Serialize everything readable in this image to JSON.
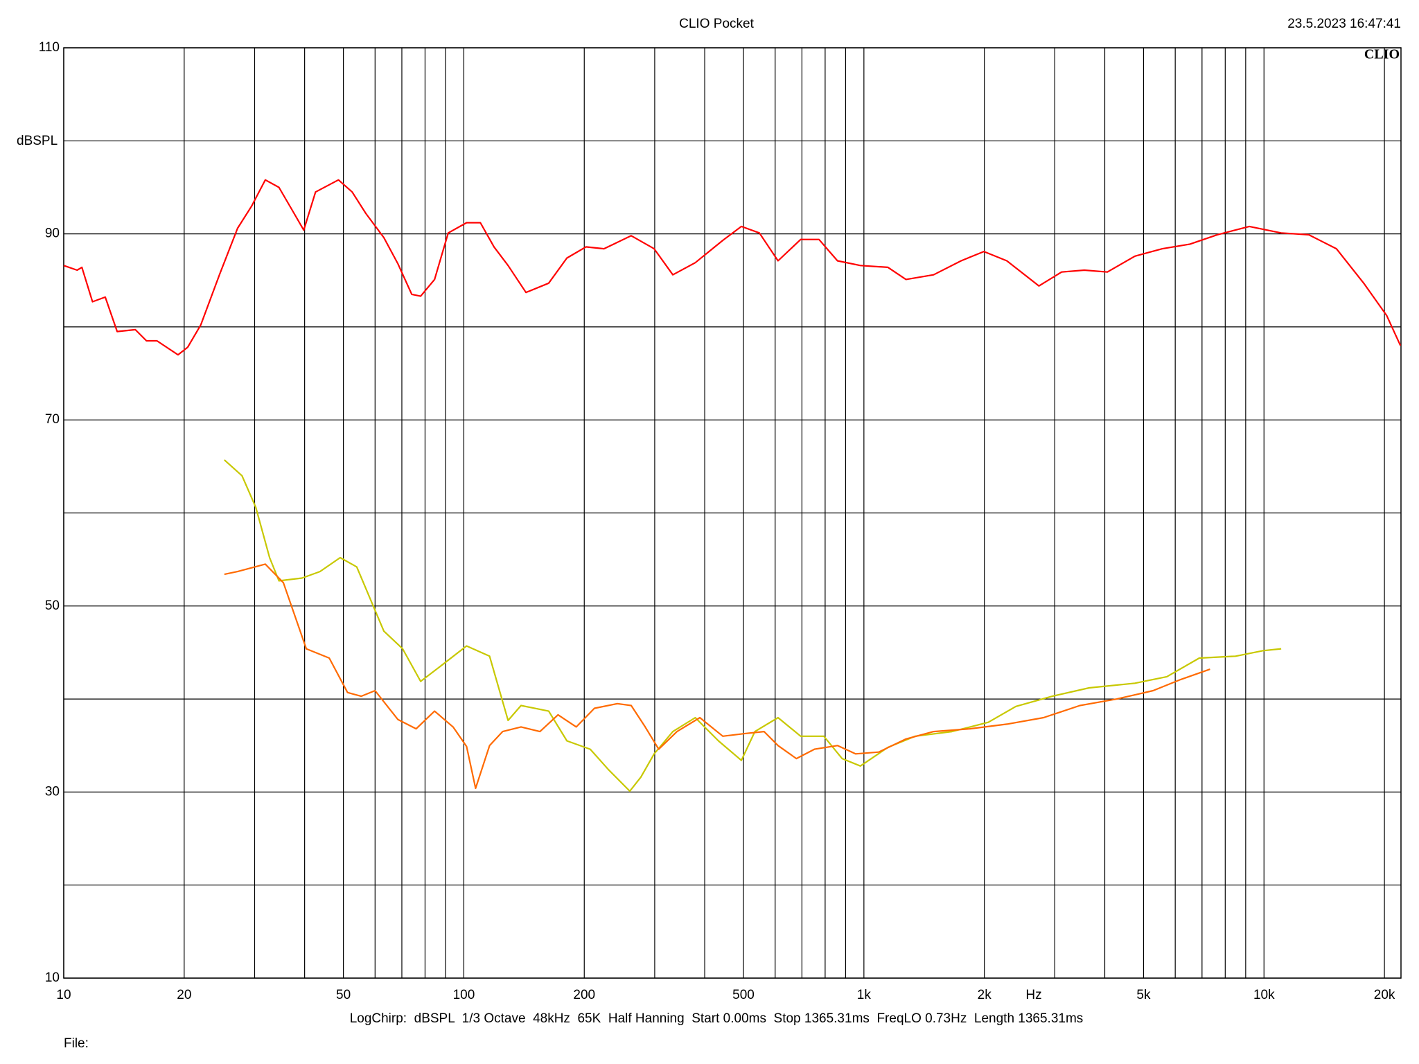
{
  "chart_data": {
    "type": "line",
    "title": "CLIO Pocket",
    "timestamp": "23.5.2023 16:47:41",
    "logo": "CLIO",
    "ylabel": "dBSPL",
    "xlabel": "Hz",
    "footer": "LogChirp:  dBSPL  1/3 Octave  48kHz  65K  Half Hanning  Start 0.00ms  Stop 1365.31ms  FreqLO 0.73Hz  Length 1365.31ms",
    "file": "File:",
    "xscale": "log",
    "xlim": [
      10,
      22000
    ],
    "ylim": [
      10,
      110
    ],
    "xticks": [
      10,
      20,
      50,
      100,
      200,
      500,
      {
        "value": 1000,
        "label": "1k"
      },
      {
        "value": 2000,
        "label": "2k"
      },
      {
        "value": 5000,
        "label": "5k"
      },
      {
        "value": 10000,
        "label": "10k"
      },
      {
        "value": 20000,
        "label": "20k"
      }
    ],
    "xgrid": [
      30,
      40,
      60,
      70,
      80,
      90,
      300,
      400,
      600,
      700,
      800,
      900,
      3000,
      4000,
      6000,
      7000,
      8000,
      9000
    ],
    "yticks": [
      10,
      30,
      50,
      70,
      90,
      110
    ],
    "ygrid": [
      20,
      40,
      60,
      80,
      100
    ],
    "grid": true,
    "series": [
      {
        "color": "#ff0000",
        "x": [
          10,
          10.8,
          11.1,
          11.8,
          12.7,
          13.6,
          15.1,
          16.1,
          17.1,
          19.3,
          20.4,
          22,
          24.5,
          27.2,
          29.5,
          31.9,
          34.5,
          37.3,
          39.8,
          42.6,
          48.6,
          52.6,
          56.9,
          63.1,
          68.4,
          74.1,
          78,
          84.5,
          91.4,
          101.6,
          110,
          119,
          129,
          143,
          163,
          181,
          202,
          224,
          262,
          299,
          333,
          379,
          444,
          494,
          548,
          610,
          695,
          772,
          859,
          980,
          1148,
          1274,
          1493,
          1750,
          1995,
          2276,
          2738,
          3120,
          3556,
          4060,
          4757,
          5572,
          6530,
          7640,
          9190,
          11040,
          12940,
          15170,
          17750,
          20270,
          21930
        ],
        "values": [
          86.6,
          86.1,
          86.4,
          82.7,
          83.2,
          79.5,
          79.7,
          78.5,
          78.5,
          77.0,
          77.8,
          80.2,
          85.6,
          90.6,
          93.0,
          95.8,
          95.0,
          92.5,
          90.4,
          94.5,
          95.8,
          94.5,
          92.2,
          89.6,
          86.8,
          83.5,
          83.3,
          85.1,
          90.1,
          91.2,
          91.2,
          88.6,
          86.6,
          83.7,
          84.7,
          87.4,
          88.6,
          88.4,
          89.8,
          88.4,
          85.6,
          86.9,
          89.3,
          90.8,
          90.1,
          87.1,
          89.4,
          89.4,
          87.1,
          86.6,
          86.4,
          85.1,
          85.6,
          87.1,
          88.1,
          87.1,
          84.4,
          85.9,
          86.1,
          85.9,
          87.6,
          88.4,
          88.9,
          89.9,
          90.8,
          90.1,
          89.9,
          88.4,
          84.7,
          81.2,
          78.0
        ]
      },
      {
        "color": "#c8c800",
        "x": [
          25.2,
          27.9,
          30.2,
          32.7,
          34.5,
          39.4,
          43.7,
          49.1,
          54,
          63.1,
          70.3,
          78,
          86.7,
          101.6,
          116,
          129,
          139,
          163,
          181,
          207,
          230,
          260,
          277,
          299,
          333,
          379,
          433,
          494,
          534,
          610,
          695,
          794,
          882,
          980,
          1148,
          1343,
          1660,
          2046,
          2398,
          2958,
          3656,
          4757,
          5715,
          6890,
          8490,
          9950,
          11040
        ],
        "values": [
          65.7,
          64.0,
          60.6,
          55.2,
          52.7,
          53.0,
          53.7,
          55.2,
          54.2,
          47.3,
          45.4,
          41.9,
          43.4,
          45.7,
          44.6,
          37.7,
          39.3,
          38.7,
          35.5,
          34.6,
          32.4,
          30.1,
          31.6,
          34.1,
          36.5,
          38.0,
          35.5,
          33.4,
          36.5,
          38.0,
          36.0,
          36.0,
          33.6,
          32.8,
          34.8,
          36.0,
          36.5,
          37.5,
          39.2,
          40.3,
          41.2,
          41.7,
          42.4,
          44.4,
          44.6,
          45.2,
          45.4
        ]
      },
      {
        "color": "#ff6a00",
        "x": [
          25.2,
          27.2,
          31.9,
          35.4,
          40.4,
          46.1,
          51.2,
          55.4,
          60,
          68.4,
          76,
          84.5,
          94,
          101.6,
          107,
          116,
          125,
          139,
          155,
          172,
          191,
          212,
          242,
          262,
          284,
          307,
          341,
          389,
          444,
          507,
          563,
          610,
          678,
          752,
          859,
          953,
          1089,
          1274,
          1493,
          1841,
          2276,
          2812,
          3467,
          4285,
          5284,
          6194,
          7330
        ],
        "values": [
          53.4,
          53.7,
          54.5,
          52.5,
          45.4,
          44.4,
          40.7,
          40.3,
          40.9,
          37.8,
          36.8,
          38.7,
          37.0,
          34.9,
          30.4,
          35.0,
          36.5,
          37.0,
          36.5,
          38.3,
          37.0,
          39.0,
          39.5,
          39.3,
          37.0,
          34.6,
          36.5,
          38.0,
          36.0,
          36.3,
          36.5,
          35.0,
          33.6,
          34.6,
          35.0,
          34.1,
          34.3,
          35.7,
          36.5,
          36.8,
          37.3,
          38.0,
          39.3,
          40.0,
          40.9,
          42.1,
          43.2
        ]
      }
    ]
  }
}
